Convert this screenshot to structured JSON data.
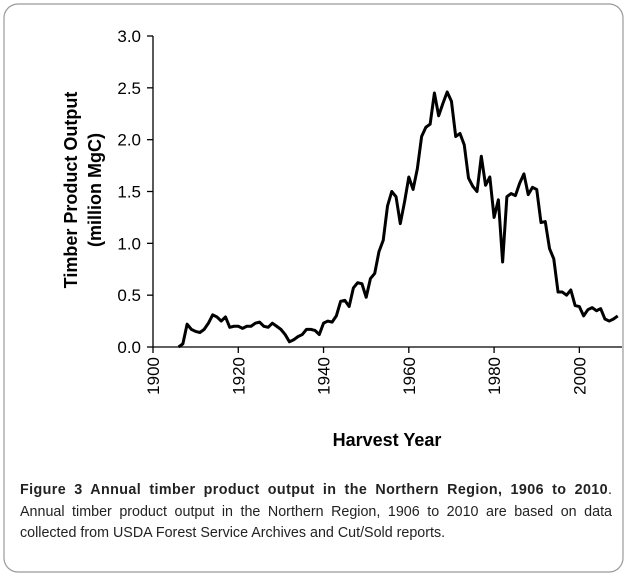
{
  "chart_data": {
    "type": "line",
    "ylabel": [
      "Timber Product Output",
      "(million MgC)"
    ],
    "xlabel": "Harvest Year",
    "color": "#000000",
    "x": [
      1906,
      1907,
      1908,
      1909,
      1910,
      1911,
      1912,
      1913,
      1914,
      1915,
      1916,
      1917,
      1918,
      1919,
      1920,
      1921,
      1922,
      1923,
      1924,
      1925,
      1926,
      1927,
      1928,
      1929,
      1930,
      1931,
      1932,
      1933,
      1934,
      1935,
      1936,
      1937,
      1938,
      1939,
      1940,
      1941,
      1942,
      1943,
      1944,
      1945,
      1946,
      1947,
      1948,
      1949,
      1950,
      1951,
      1952,
      1953,
      1954,
      1955,
      1956,
      1957,
      1958,
      1959,
      1960,
      1961,
      1962,
      1963,
      1964,
      1965,
      1966,
      1967,
      1968,
      1969,
      1970,
      1971,
      1972,
      1973,
      1974,
      1975,
      1976,
      1977,
      1978,
      1979,
      1980,
      1981,
      1982,
      1983,
      1984,
      1985,
      1986,
      1987,
      1988,
      1989,
      1990,
      1991,
      1992,
      1993,
      1994,
      1995,
      1996,
      1997,
      1998,
      1999,
      2000,
      2001,
      2002,
      2003,
      2004,
      2005,
      2006,
      2007,
      2008,
      2009
    ],
    "values": [
      0.0,
      0.03,
      0.22,
      0.17,
      0.15,
      0.14,
      0.17,
      0.23,
      0.31,
      0.29,
      0.25,
      0.29,
      0.19,
      0.2,
      0.2,
      0.18,
      0.2,
      0.2,
      0.23,
      0.24,
      0.2,
      0.19,
      0.23,
      0.2,
      0.17,
      0.12,
      0.05,
      0.07,
      0.1,
      0.12,
      0.17,
      0.17,
      0.16,
      0.12,
      0.23,
      0.25,
      0.24,
      0.3,
      0.44,
      0.45,
      0.39,
      0.57,
      0.62,
      0.61,
      0.48,
      0.66,
      0.71,
      0.92,
      1.03,
      1.36,
      1.5,
      1.45,
      1.19,
      1.4,
      1.64,
      1.52,
      1.72,
      2.03,
      2.12,
      2.15,
      2.45,
      2.23,
      2.35,
      2.46,
      2.37,
      2.03,
      2.06,
      1.95,
      1.63,
      1.55,
      1.5,
      1.84,
      1.56,
      1.64,
      1.25,
      1.42,
      0.82,
      1.45,
      1.48,
      1.46,
      1.58,
      1.67,
      1.47,
      1.54,
      1.52,
      1.2,
      1.21,
      0.95,
      0.85,
      0.53,
      0.53,
      0.5,
      0.55,
      0.4,
      0.39,
      0.3,
      0.36,
      0.38,
      0.35,
      0.37,
      0.27,
      0.25,
      0.27,
      0.3
    ],
    "xlim": [
      1900,
      2010
    ],
    "xticks": [
      1900,
      1920,
      1940,
      1960,
      1980,
      2000
    ],
    "ylim": [
      0,
      3
    ],
    "yticks": [
      {
        "value": 0,
        "label": "0.0"
      },
      {
        "value": 0.5,
        "label": "0.5"
      },
      {
        "value": 1,
        "label": "1.0"
      },
      {
        "value": 1.5,
        "label": "1.5"
      },
      {
        "value": 2,
        "label": "2.0"
      },
      {
        "value": 2.5,
        "label": "2.5"
      },
      {
        "value": 3,
        "label": "3.0"
      }
    ],
    "grid": false
  },
  "caption": {
    "title": "Figure 3 Annual timber product output in the Northern Region, 1906 to 2010",
    "text": ". Annual timber product output in the Northern Region, 1906 to 2010 are based on data collected from USDA Forest Service Archives and Cut/Sold reports."
  }
}
